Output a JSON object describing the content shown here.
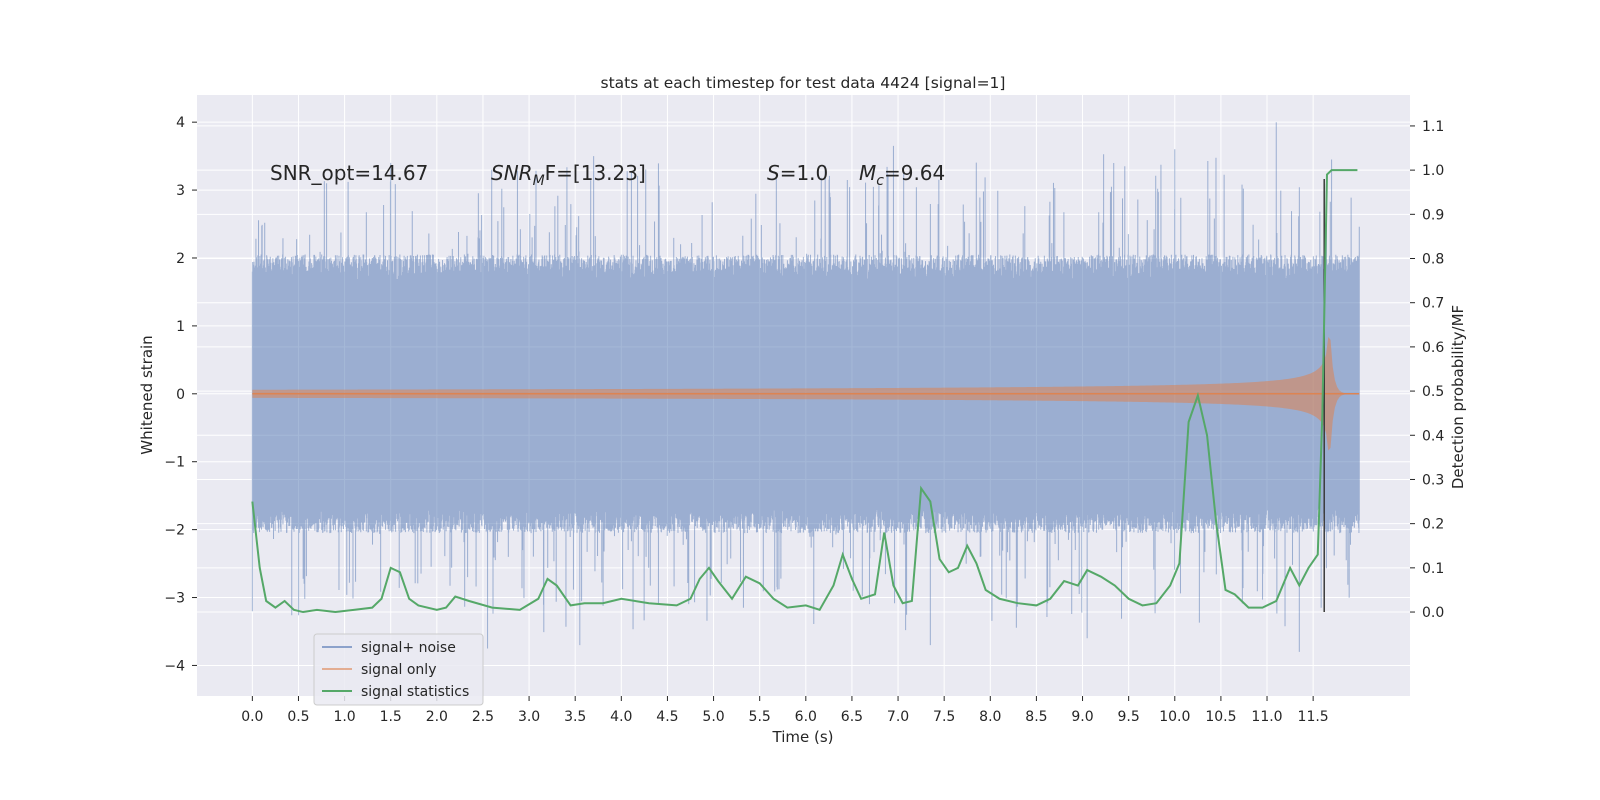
{
  "chart_data": {
    "type": "line",
    "title": "stats at each timestep for test data 4424 [signal=1]",
    "xlabel": "Time (s)",
    "ylabel": "Whitened strain",
    "y2label": "Detection probability/MF",
    "xlim": [
      -0.6,
      12.55
    ],
    "ylim": [
      -4.45,
      4.4
    ],
    "y2lim": [
      -0.19,
      1.17
    ],
    "x_ticks": [
      0.0,
      0.5,
      1.0,
      1.5,
      2.0,
      2.5,
      3.0,
      3.5,
      4.0,
      4.5,
      5.0,
      5.5,
      6.0,
      6.5,
      7.0,
      7.5,
      8.0,
      8.5,
      9.0,
      9.5,
      10.0,
      10.5,
      11.0,
      11.5
    ],
    "x_tick_labels": [
      "0.0",
      "0.5",
      "1.0",
      "1.5",
      "2.0",
      "2.5",
      "3.0",
      "3.5",
      "4.0",
      "4.5",
      "5.0",
      "5.5",
      "6.0",
      "6.5",
      "7.0",
      "7.5",
      "8.0",
      "8.5",
      "9.0",
      "9.5",
      "10.0",
      "10.5",
      "11.0",
      "11.5"
    ],
    "y_ticks": [
      -4,
      -3,
      -2,
      -1,
      0,
      1,
      2,
      3,
      4
    ],
    "y_tick_labels": [
      "−4",
      "−3",
      "−2",
      "−1",
      "0",
      "1",
      "2",
      "3",
      "4"
    ],
    "y2_ticks": [
      0.0,
      0.1,
      0.2,
      0.3,
      0.4,
      0.5,
      0.6,
      0.7,
      0.8,
      0.9,
      1.0,
      1.1
    ],
    "y2_tick_labels": [
      "0.0",
      "0.1",
      "0.2",
      "0.3",
      "0.4",
      "0.5",
      "0.6",
      "0.7",
      "0.8",
      "0.9",
      "1.0",
      "1.1"
    ],
    "grid": true,
    "legend_placement": "lower-left",
    "noise_range": {
      "t_start": 0.0,
      "t_end": 12.0,
      "typical_amplitude": 1.9,
      "max_peak": 4.0,
      "min_peak": -3.8
    },
    "signal_only": {
      "t_start": 0.0,
      "t_merger": 11.68,
      "t_end": 12.0,
      "peak_amplitude": 1.0
    },
    "event_marker_x": 11.62,
    "series": [
      {
        "name": "signal+ noise",
        "color": "#4c72b0",
        "axis": "left"
      },
      {
        "name": "signal only",
        "color": "#dd8452",
        "axis": "left"
      },
      {
        "name": "signal statistics",
        "color": "#55a868",
        "axis": "right",
        "x": [
          0.0,
          0.08,
          0.15,
          0.25,
          0.35,
          0.45,
          0.55,
          0.7,
          0.9,
          1.1,
          1.3,
          1.4,
          1.5,
          1.6,
          1.7,
          1.8,
          2.0,
          2.1,
          2.2,
          2.35,
          2.6,
          2.9,
          3.1,
          3.2,
          3.3,
          3.45,
          3.6,
          3.8,
          4.0,
          4.3,
          4.6,
          4.75,
          4.85,
          4.95,
          5.05,
          5.2,
          5.35,
          5.5,
          5.65,
          5.8,
          6.0,
          6.15,
          6.3,
          6.4,
          6.5,
          6.6,
          6.75,
          6.85,
          6.95,
          7.05,
          7.15,
          7.25,
          7.35,
          7.45,
          7.55,
          7.65,
          7.75,
          7.85,
          7.95,
          8.1,
          8.3,
          8.5,
          8.65,
          8.8,
          8.95,
          9.05,
          9.2,
          9.35,
          9.5,
          9.65,
          9.8,
          9.95,
          10.05,
          10.15,
          10.25,
          10.35,
          10.45,
          10.55,
          10.65,
          10.8,
          10.95,
          11.1,
          11.25,
          11.35,
          11.45,
          11.55,
          11.6,
          11.65,
          11.7,
          11.75,
          11.8,
          11.9,
          11.98
        ],
        "values": [
          0.25,
          0.1,
          0.025,
          0.01,
          0.025,
          0.005,
          0.0,
          0.005,
          0.0,
          0.005,
          0.01,
          0.03,
          0.1,
          0.09,
          0.03,
          0.015,
          0.005,
          0.01,
          0.035,
          0.025,
          0.01,
          0.005,
          0.03,
          0.075,
          0.06,
          0.015,
          0.02,
          0.02,
          0.03,
          0.02,
          0.015,
          0.03,
          0.075,
          0.1,
          0.07,
          0.03,
          0.08,
          0.065,
          0.03,
          0.01,
          0.015,
          0.005,
          0.06,
          0.13,
          0.075,
          0.03,
          0.04,
          0.18,
          0.06,
          0.02,
          0.025,
          0.28,
          0.25,
          0.12,
          0.09,
          0.1,
          0.15,
          0.11,
          0.05,
          0.03,
          0.02,
          0.015,
          0.03,
          0.07,
          0.06,
          0.095,
          0.08,
          0.06,
          0.03,
          0.015,
          0.02,
          0.06,
          0.11,
          0.43,
          0.49,
          0.4,
          0.2,
          0.05,
          0.04,
          0.01,
          0.01,
          0.025,
          0.1,
          0.06,
          0.1,
          0.13,
          0.45,
          0.99,
          1.0,
          1.0,
          1.0,
          1.0,
          1.0
        ]
      }
    ],
    "annotations": {
      "snr_opt": "SNR_opt=14.67",
      "snr_mf_name": "SNR",
      "snr_mf_sub": "M",
      "snr_mf_tail": "F=[13.23]",
      "s_name": "S",
      "s_value": "=1.0",
      "mc_name": "M",
      "mc_sub": "c",
      "mc_value": "=9.64"
    }
  }
}
